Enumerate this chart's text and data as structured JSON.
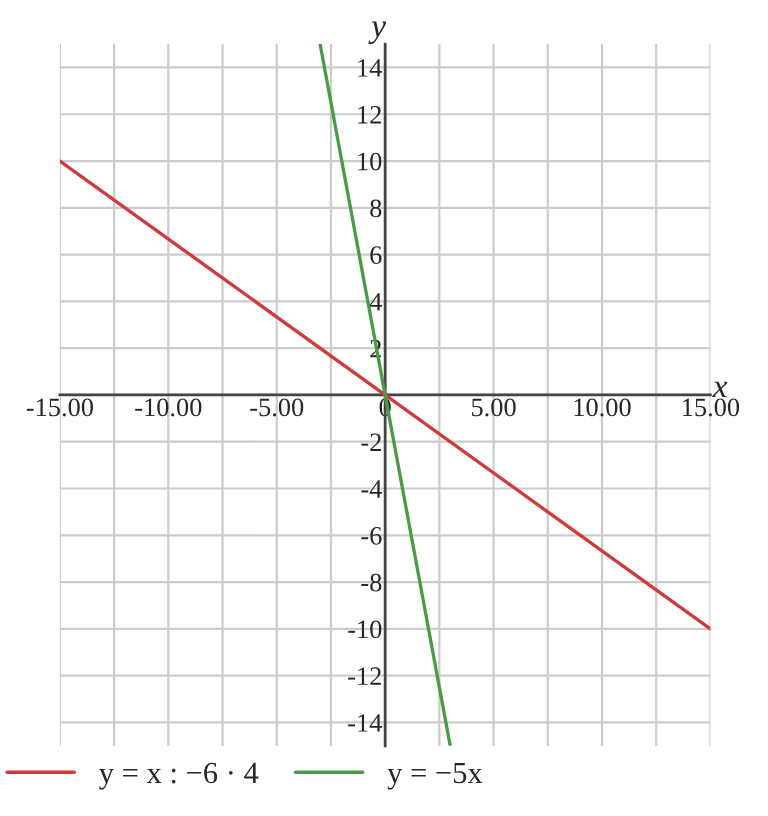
{
  "chart_data": {
    "type": "line",
    "xlabel": "x",
    "ylabel": "y",
    "series": [
      {
        "name": "y = x : −6 · 4",
        "color": "#d03a3a",
        "x": [
          -15,
          15
        ],
        "values": [
          10,
          -10
        ]
      },
      {
        "name": "y = −5x",
        "color": "#4a9a48",
        "x": [
          -3,
          3
        ],
        "values": [
          15,
          -15
        ]
      }
    ],
    "xlim": [
      -15,
      15
    ],
    "ylim": [
      -15,
      15
    ],
    "xticks": [
      {
        "value": -15,
        "label": "-15.00"
      },
      {
        "value": -12.5,
        "label": null
      },
      {
        "value": -10,
        "label": "-10.00"
      },
      {
        "value": -7.5,
        "label": null
      },
      {
        "value": -5,
        "label": "-5.00"
      },
      {
        "value": -2.5,
        "label": null
      },
      {
        "value": 0,
        "label": "0"
      },
      {
        "value": 2.5,
        "label": null
      },
      {
        "value": 5,
        "label": "5.00"
      },
      {
        "value": 7.5,
        "label": null
      },
      {
        "value": 10,
        "label": "10.00"
      },
      {
        "value": 12.5,
        "label": null
      },
      {
        "value": 15,
        "label": "15.00"
      }
    ],
    "yticks": [
      -14,
      -12,
      -10,
      -8,
      -6,
      -4,
      -2,
      {
        "value": 0,
        "label": null
      },
      2,
      4,
      6,
      8,
      10,
      12,
      14
    ],
    "grid": true,
    "legend": "bottom",
    "marker": "none",
    "line_style": "solid"
  }
}
